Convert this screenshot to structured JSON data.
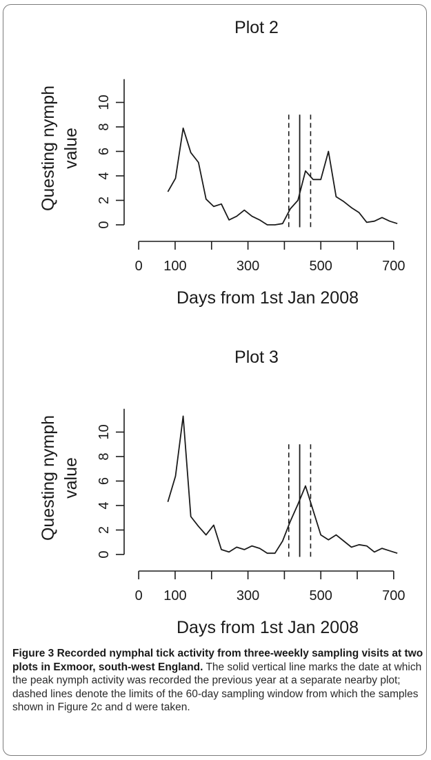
{
  "chart_data": [
    {
      "type": "line",
      "title": "Plot 2",
      "xlabel": "Days from 1st Jan 2008",
      "ylabel_line1": "Questing nymph",
      "ylabel_line2": "value",
      "xlim": [
        -40,
        740
      ],
      "ylim": [
        0,
        12
      ],
      "x_ticks": [
        "0",
        "100",
        "300",
        "500",
        "700"
      ],
      "x_tick_values": [
        0,
        100,
        300,
        500,
        700
      ],
      "x_minor_ticks": [
        0,
        100,
        200,
        300,
        400,
        500,
        600,
        700
      ],
      "y_ticks": [
        "0",
        "2",
        "4",
        "6",
        "8",
        "10"
      ],
      "y_tick_values": [
        0,
        2,
        4,
        6,
        8,
        10
      ],
      "vlines": {
        "solid": 442,
        "dashed": [
          412,
          472
        ]
      },
      "series": [
        {
          "x": [
            80,
            101,
            122,
            143,
            164,
            185,
            206,
            227,
            248,
            269,
            290,
            311,
            332,
            353,
            374,
            395,
            416,
            437,
            458,
            479,
            500,
            521,
            542,
            563,
            584,
            605,
            626,
            647,
            668,
            689,
            710
          ],
          "y": [
            2.7,
            3.8,
            7.9,
            5.9,
            5.1,
            2.1,
            1.5,
            1.7,
            0.4,
            0.7,
            1.2,
            0.7,
            0.4,
            0.0,
            0.0,
            0.1,
            1.3,
            2.0,
            4.4,
            3.7,
            3.7,
            6.0,
            2.3,
            1.9,
            1.4,
            1.0,
            0.2,
            0.3,
            0.6,
            0.3,
            0.1
          ]
        }
      ]
    },
    {
      "type": "line",
      "title": "Plot 3",
      "xlabel": "Days from 1st Jan 2008",
      "ylabel_line1": "Questing nymph",
      "ylabel_line2": "value",
      "xlim": [
        -40,
        740
      ],
      "ylim": [
        0,
        12
      ],
      "x_ticks": [
        "0",
        "100",
        "300",
        "500",
        "700"
      ],
      "x_tick_values": [
        0,
        100,
        300,
        500,
        700
      ],
      "x_minor_ticks": [
        0,
        100,
        200,
        300,
        400,
        500,
        600,
        700
      ],
      "y_ticks": [
        "0",
        "2",
        "4",
        "6",
        "8",
        "10"
      ],
      "y_tick_values": [
        0,
        2,
        4,
        6,
        8,
        10
      ],
      "vlines": {
        "solid": 442,
        "dashed": [
          412,
          472
        ]
      },
      "series": [
        {
          "x": [
            80,
            101,
            122,
            143,
            164,
            185,
            206,
            227,
            248,
            269,
            290,
            311,
            332,
            353,
            374,
            395,
            416,
            437,
            458,
            479,
            500,
            521,
            542,
            563,
            584,
            605,
            626,
            647,
            668,
            689,
            710
          ],
          "y": [
            4.3,
            6.4,
            11.3,
            3.1,
            2.3,
            1.6,
            2.4,
            0.4,
            0.2,
            0.6,
            0.4,
            0.7,
            0.5,
            0.1,
            0.1,
            1.1,
            2.7,
            4.1,
            5.6,
            3.6,
            1.6,
            1.2,
            1.6,
            1.1,
            0.6,
            0.8,
            0.7,
            0.2,
            0.5,
            0.3,
            0.1
          ]
        }
      ]
    }
  ],
  "caption": {
    "bold": "Figure 3 Recorded nymphal tick activity from three-weekly sampling visits at two plots in Exmoor, south-west England.",
    "text": "The solid vertical line marks the date at which the peak nymph activity was recorded the previous year at a separate nearby plot; dashed lines denote the limits of the 60-day sampling window from which the samples shown in Figure 2c and d were taken."
  }
}
